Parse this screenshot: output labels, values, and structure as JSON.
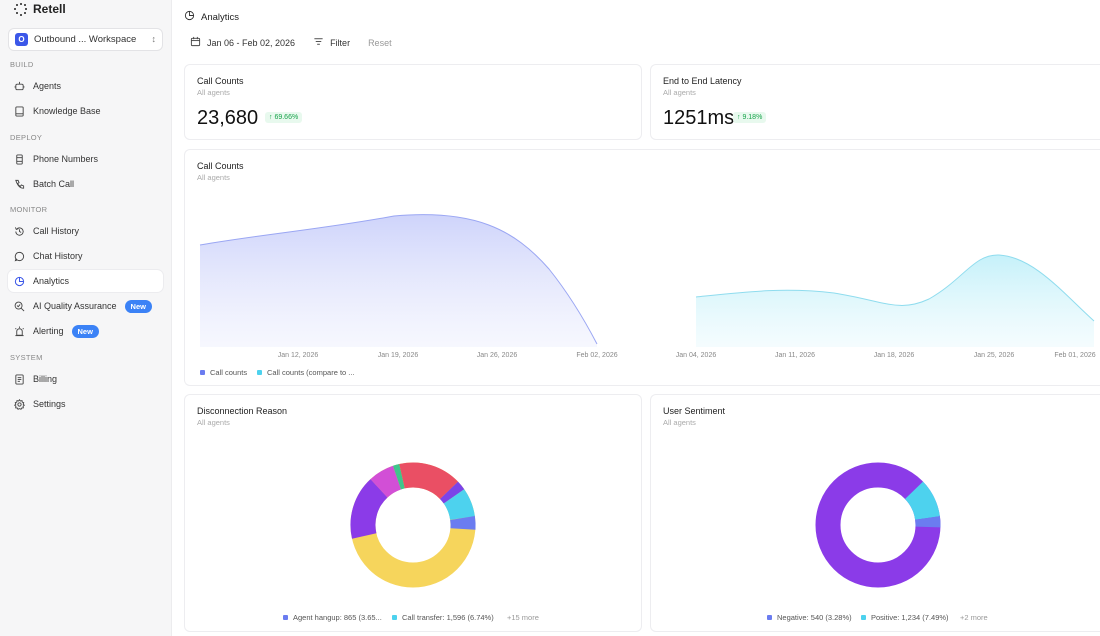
{
  "app": {
    "name": "Retell"
  },
  "workspace": {
    "initial": "O",
    "name": "Outbound ... Workspace"
  },
  "sidebar": {
    "sections": [
      {
        "label": "BUILD",
        "items": [
          {
            "label": "Agents",
            "icon": "robot-icon"
          },
          {
            "label": "Knowledge Base",
            "icon": "book-icon"
          }
        ]
      },
      {
        "label": "DEPLOY",
        "items": [
          {
            "label": "Phone Numbers",
            "icon": "phone-device-icon"
          },
          {
            "label": "Batch Call",
            "icon": "phone-icon"
          }
        ]
      },
      {
        "label": "MONITOR",
        "items": [
          {
            "label": "Call History",
            "icon": "history-icon"
          },
          {
            "label": "Chat History",
            "icon": "chat-icon"
          },
          {
            "label": "Analytics",
            "icon": "pie-chart-icon",
            "active": true
          },
          {
            "label": "AI Quality Assurance",
            "icon": "search-check-icon",
            "badge": "New"
          },
          {
            "label": "Alerting",
            "icon": "alarm-icon",
            "badge": "New"
          }
        ]
      },
      {
        "label": "SYSTEM",
        "items": [
          {
            "label": "Billing",
            "icon": "billing-icon"
          },
          {
            "label": "Settings",
            "icon": "gear-icon"
          }
        ]
      }
    ]
  },
  "page": {
    "title": "Analytics"
  },
  "filters": {
    "date_range": "Jan 06 - Feb 02, 2026",
    "filter_label": "Filter",
    "reset_label": "Reset"
  },
  "kpis": {
    "call_counts": {
      "title": "Call Counts",
      "subtitle": "All agents",
      "value": "23,680",
      "change": "69.66%"
    },
    "latency": {
      "title": "End to End Latency",
      "subtitle": "All agents",
      "value": "1251ms",
      "change": "9.18%"
    }
  },
  "call_chart": {
    "title": "Call Counts",
    "subtitle": "All agents",
    "legend": [
      {
        "label": "Call counts",
        "color": "#6b7cf0"
      },
      {
        "label": "Call counts (compare to ...",
        "color": "#4dd2ee"
      }
    ],
    "current_ticks": [
      "Jan 12, 2026",
      "Jan 19, 2026",
      "Jan 26, 2026",
      "Feb 02, 2026"
    ],
    "compare_ticks": [
      "Jan 04, 2026",
      "Jan 11, 2026",
      "Jan 18, 2026",
      "Jan 25, 2026",
      "Feb 01, 2026"
    ]
  },
  "disconnection": {
    "title": "Disconnection Reason",
    "subtitle": "All agents",
    "legend": [
      {
        "label": "Agent hangup: 865 (3.65...",
        "color": "#6b7cf0"
      },
      {
        "label": "Call transfer: 1,596 (6.74%)",
        "color": "#4dd2ee"
      }
    ],
    "more": "+15 more"
  },
  "sentiment": {
    "title": "User Sentiment",
    "subtitle": "All agents",
    "legend": [
      {
        "label": "Negative: 540 (3.28%)",
        "color": "#6b7cf0"
      },
      {
        "label": "Positive: 1,234 (7.49%)",
        "color": "#4dd2ee"
      }
    ],
    "more": "+2 more"
  },
  "colors": {
    "accent": "#3b57e8",
    "badge_new": "#3b82f6",
    "positive": "#17a34a",
    "series_current": "#6b7cf0",
    "series_compare": "#4dd2ee"
  }
}
